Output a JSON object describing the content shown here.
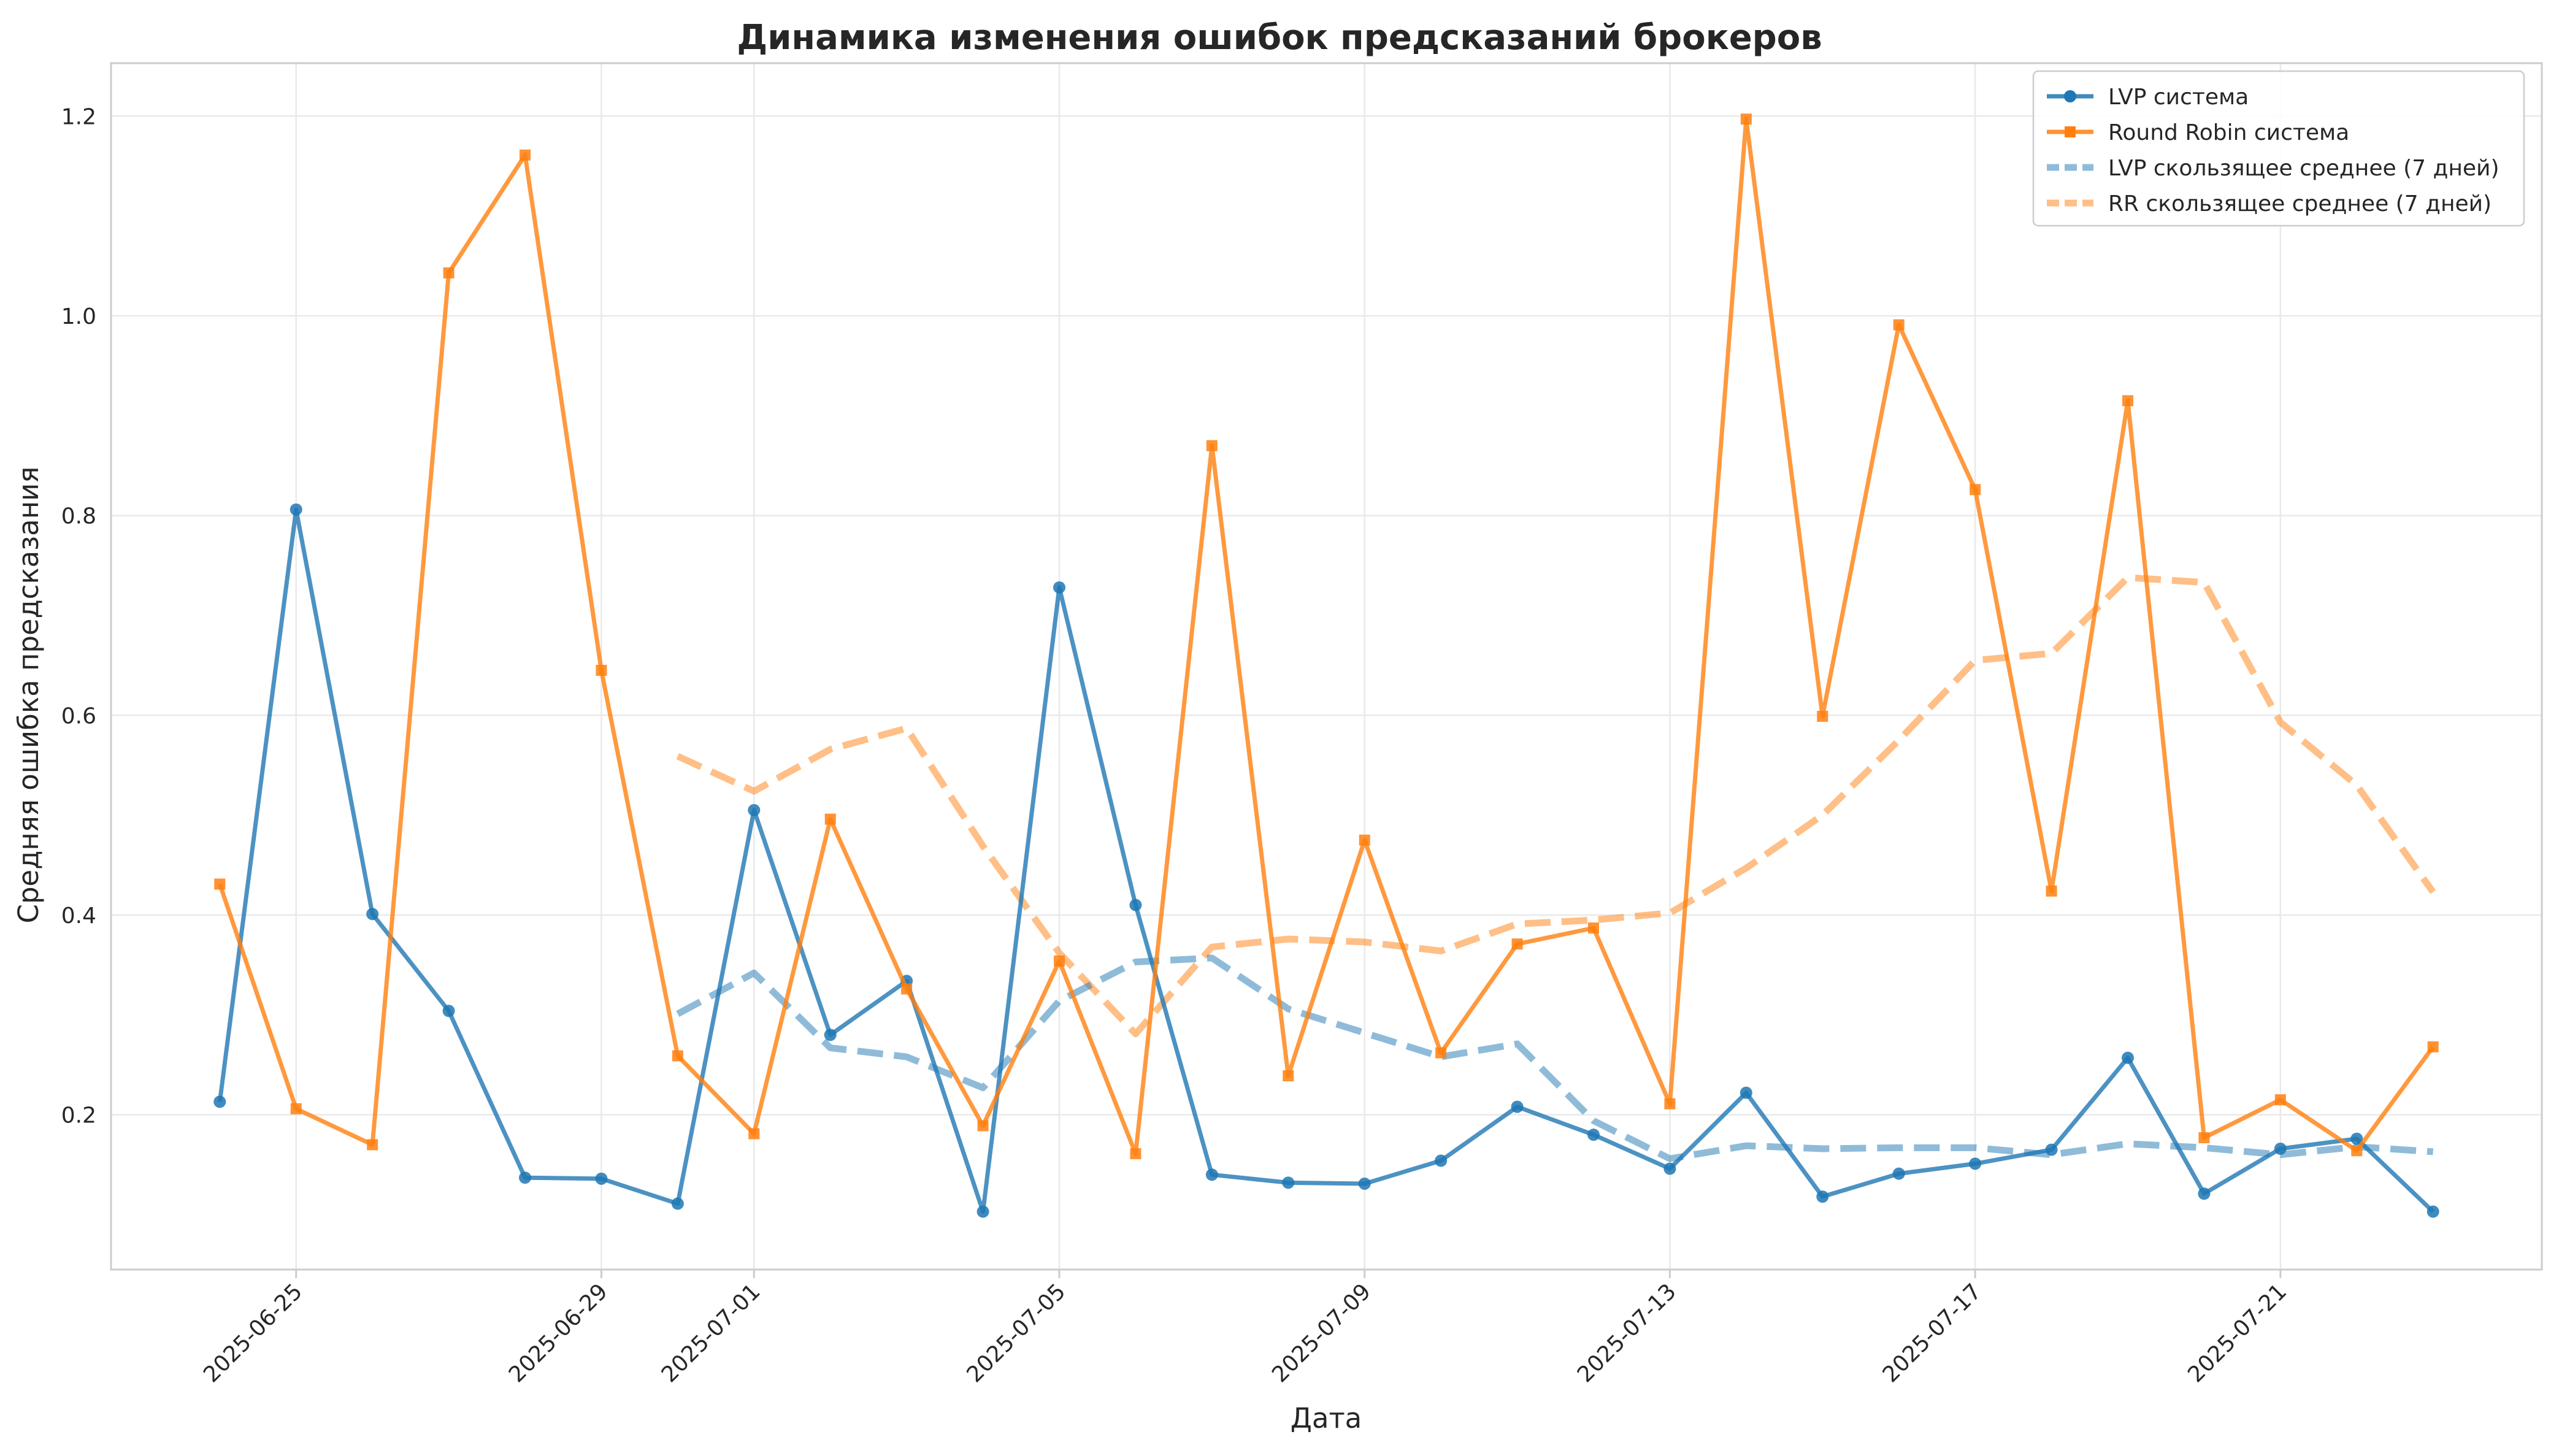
{
  "chart_data": {
    "type": "line",
    "title": "Динамика изменения ошибок предсказаний брокеров",
    "xlabel": "Дата",
    "ylabel": "Средняя ошибка предсказания",
    "x": [
      "2025-06-24",
      "2025-06-25",
      "2025-06-26",
      "2025-06-27",
      "2025-06-28",
      "2025-06-29",
      "2025-06-30",
      "2025-07-01",
      "2025-07-02",
      "2025-07-03",
      "2025-07-04",
      "2025-07-05",
      "2025-07-06",
      "2025-07-07",
      "2025-07-08",
      "2025-07-09",
      "2025-07-10",
      "2025-07-11",
      "2025-07-12",
      "2025-07-13",
      "2025-07-14",
      "2025-07-15",
      "2025-07-16",
      "2025-07-17",
      "2025-07-18",
      "2025-07-19",
      "2025-07-20",
      "2025-07-21",
      "2025-07-22",
      "2025-07-23"
    ],
    "x_ticks": [
      "2025-06-25",
      "2025-06-29",
      "2025-07-01",
      "2025-07-05",
      "2025-07-09",
      "2025-07-13",
      "2025-07-17",
      "2025-07-21"
    ],
    "y_ticks": [
      0.2,
      0.4,
      0.6,
      0.8,
      1.0,
      1.2
    ],
    "y_tick_labels": [
      "0.2",
      "0.4",
      "0.6",
      "0.8",
      "1.0",
      "1.2"
    ],
    "xlim": [
      "2025-06-22T13:48",
      "2025-07-24T10:12"
    ],
    "ylim": [
      0.045,
      1.253
    ],
    "grid": true,
    "legend_position": "top-right",
    "series": [
      {
        "name": "LVP система",
        "color": "#1f77b4",
        "style": "solid",
        "marker": "circle",
        "values": [
          0.213,
          0.806,
          0.401,
          0.304,
          0.137,
          0.136,
          0.111,
          0.505,
          0.28,
          0.334,
          0.103,
          0.728,
          0.41,
          0.14,
          0.132,
          0.131,
          0.154,
          0.208,
          0.18,
          0.146,
          0.222,
          0.118,
          0.141,
          0.151,
          0.165,
          0.257,
          0.121,
          0.166,
          0.176,
          0.103
        ]
      },
      {
        "name": "Round Robin система",
        "color": "#ff7f0e",
        "style": "solid",
        "marker": "square",
        "values": [
          0.431,
          0.206,
          0.17,
          1.043,
          1.161,
          0.645,
          0.259,
          0.181,
          0.496,
          0.326,
          0.189,
          0.354,
          0.161,
          0.87,
          0.239,
          0.475,
          0.262,
          0.371,
          0.387,
          0.211,
          1.197,
          0.599,
          0.991,
          0.826,
          0.424,
          0.915,
          0.177,
          0.215,
          0.164,
          0.268
        ]
      },
      {
        "name": "LVP скользящее среднее (7 дней)",
        "color": "#1f77b4",
        "style": "dashed",
        "marker": "none",
        "values": [
          null,
          null,
          null,
          null,
          null,
          null,
          0.301,
          0.342,
          0.267,
          0.258,
          0.227,
          0.314,
          0.353,
          0.357,
          0.306,
          0.282,
          0.258,
          0.271,
          0.194,
          0.156,
          0.169,
          0.166,
          0.167,
          0.167,
          0.16,
          0.171,
          0.167,
          0.16,
          0.168,
          0.163
        ]
      },
      {
        "name": "RR скользящее среднее (7 дней)",
        "color": "#ff7f0e",
        "style": "dashed",
        "marker": "none",
        "values": [
          null,
          null,
          null,
          null,
          null,
          null,
          0.559,
          0.524,
          0.566,
          0.587,
          0.469,
          0.362,
          0.281,
          0.368,
          0.376,
          0.373,
          0.364,
          0.391,
          0.395,
          0.402,
          0.447,
          0.5,
          0.575,
          0.655,
          0.662,
          0.738,
          0.733,
          0.593,
          0.53,
          0.423
        ]
      }
    ]
  }
}
